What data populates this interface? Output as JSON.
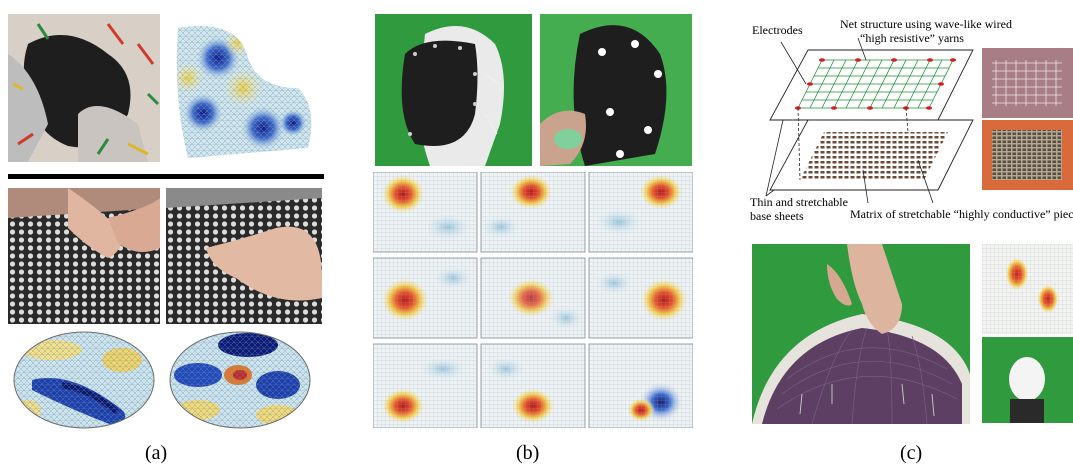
{
  "captions": {
    "a": "(a)",
    "b": "(b)",
    "c": "(c)"
  },
  "panel_c": {
    "label_electrodes": "Electrodes",
    "label_net_line1": "Net structure using wave-like wired",
    "label_net_line2": "“high resistive” yarns",
    "label_base_line1": "Thin and stretchable",
    "label_base_line2": "base sheets",
    "label_matrix": "Matrix of stretchable “highly conductive” piece"
  },
  "colors": {
    "green_screen": "#2f9a3e",
    "sensor_black": "#1e1e1e",
    "net_green": "#1d8f3a",
    "electrode_red": "#d21f1f",
    "pad_brown": "#6b4a3a",
    "fabric_purple": "#5c3f63"
  }
}
